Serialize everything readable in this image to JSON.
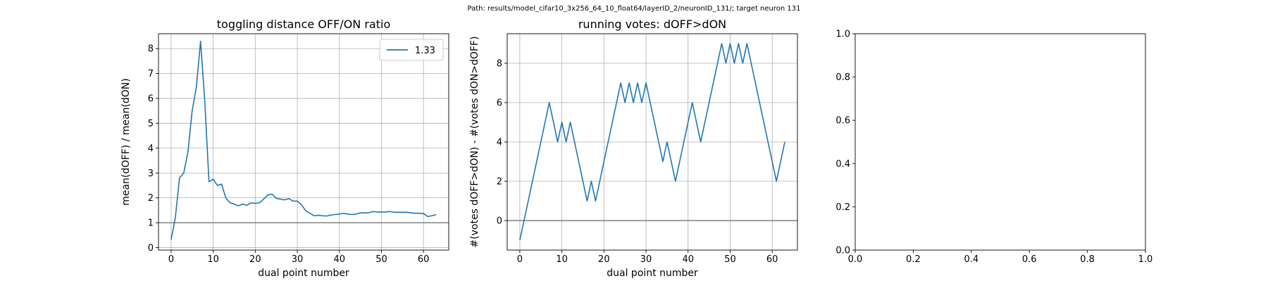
{
  "suptitle": "Path: results/model_cifar10_3x256_64_10_float64/layerID_2/neuronID_131/; target neuron 131",
  "colors": {
    "series": "#1f77b4",
    "reference": "#808080",
    "grid": "#b0b0b0"
  },
  "chart_data": [
    {
      "type": "line",
      "title": "toggling distance OFF/ON ratio",
      "xlabel": "dual point number",
      "ylabel": "mean(dOFF) / mean(dON)",
      "xlim": [
        -3,
        66
      ],
      "ylim": [
        -0.1,
        8.6
      ],
      "xticks": [
        0,
        10,
        20,
        30,
        40,
        50,
        60
      ],
      "yticks": [
        0,
        1,
        2,
        3,
        4,
        5,
        6,
        7,
        8
      ],
      "grid": true,
      "legend": {
        "placement": "upper right",
        "entries": [
          "1.33"
        ]
      },
      "hline": 1,
      "series": [
        {
          "name": "1.33",
          "x": [
            0,
            1,
            2,
            3,
            4,
            5,
            6,
            7,
            8,
            9,
            10,
            11,
            12,
            13,
            14,
            15,
            16,
            17,
            18,
            19,
            20,
            21,
            22,
            23,
            24,
            25,
            26,
            27,
            28,
            29,
            30,
            31,
            32,
            33,
            34,
            35,
            36,
            37,
            38,
            39,
            40,
            41,
            42,
            43,
            44,
            45,
            46,
            47,
            48,
            49,
            50,
            51,
            52,
            53,
            54,
            55,
            56,
            57,
            58,
            59,
            60,
            61,
            62,
            63
          ],
          "y": [
            0.32,
            1.2,
            2.8,
            3.0,
            3.85,
            5.5,
            6.45,
            8.3,
            5.9,
            2.65,
            2.75,
            2.5,
            2.55,
            2.0,
            1.8,
            1.75,
            1.68,
            1.75,
            1.7,
            1.8,
            1.78,
            1.8,
            1.95,
            2.12,
            2.15,
            1.98,
            1.95,
            1.92,
            1.97,
            1.87,
            1.87,
            1.72,
            1.48,
            1.38,
            1.28,
            1.3,
            1.28,
            1.27,
            1.31,
            1.33,
            1.35,
            1.38,
            1.35,
            1.33,
            1.35,
            1.4,
            1.4,
            1.4,
            1.45,
            1.43,
            1.43,
            1.43,
            1.45,
            1.42,
            1.42,
            1.42,
            1.42,
            1.4,
            1.38,
            1.38,
            1.37,
            1.25,
            1.28,
            1.33
          ]
        }
      ]
    },
    {
      "type": "line",
      "title": "running votes: dOFF>dON",
      "xlabel": "dual point number",
      "ylabel": "#(votes dOFF>dON) - #(votes dON>dOFF)",
      "xlim": [
        -3,
        66
      ],
      "ylim": [
        -1.5,
        9.5
      ],
      "xticks": [
        0,
        10,
        20,
        30,
        40,
        50,
        60
      ],
      "yticks": [
        0,
        2,
        4,
        6,
        8
      ],
      "grid": true,
      "hline": 0,
      "series": [
        {
          "name": "",
          "x": [
            0,
            1,
            2,
            3,
            4,
            5,
            6,
            7,
            8,
            9,
            10,
            11,
            12,
            13,
            14,
            15,
            16,
            17,
            18,
            19,
            20,
            21,
            22,
            23,
            24,
            25,
            26,
            27,
            28,
            29,
            30,
            31,
            32,
            33,
            34,
            35,
            36,
            37,
            38,
            39,
            40,
            41,
            42,
            43,
            44,
            45,
            46,
            47,
            48,
            49,
            50,
            51,
            52,
            53,
            54,
            55,
            56,
            57,
            58,
            59,
            60,
            61,
            62,
            63
          ],
          "y": [
            -1,
            0,
            1,
            2,
            3,
            4,
            5,
            6,
            5,
            4,
            5,
            4,
            5,
            4,
            3,
            2,
            1,
            2,
            1,
            2,
            3,
            4,
            5,
            6,
            7,
            6,
            7,
            6,
            7,
            6,
            7,
            6,
            5,
            4,
            3,
            4,
            3,
            2,
            3,
            4,
            5,
            6,
            5,
            4,
            5,
            6,
            7,
            8,
            9,
            8,
            9,
            8,
            9,
            8,
            9,
            8,
            7,
            6,
            5,
            4,
            3,
            2,
            3,
            4
          ]
        }
      ]
    },
    {
      "type": "line",
      "title": "",
      "xlabel": "",
      "ylabel": "",
      "xlim": [
        0,
        1
      ],
      "ylim": [
        0,
        1
      ],
      "xticks": [
        "0.0",
        "0.2",
        "0.4",
        "0.6",
        "0.8",
        "1.0"
      ],
      "yticks": [
        "0.0",
        "0.2",
        "0.4",
        "0.6",
        "0.8",
        "1.0"
      ],
      "grid": false,
      "series": []
    }
  ]
}
